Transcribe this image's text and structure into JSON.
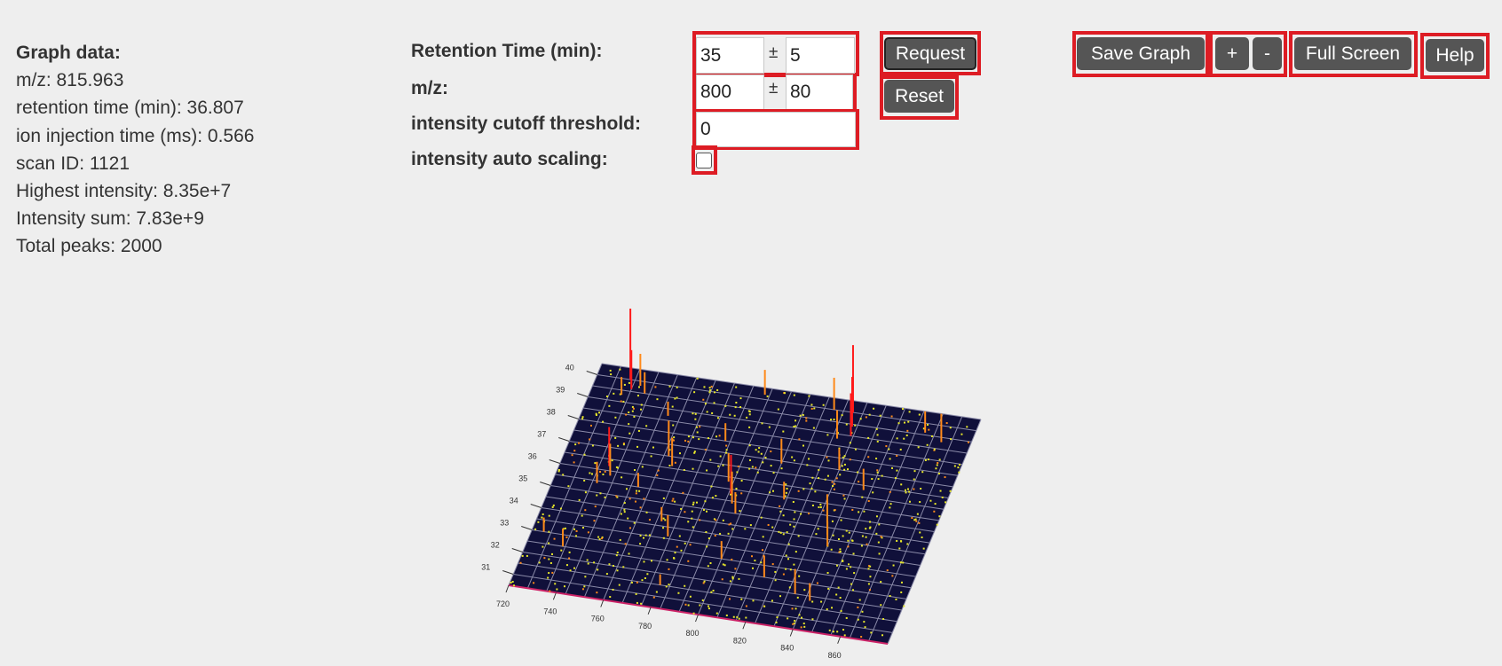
{
  "graph_info": {
    "heading": "Graph data:",
    "lines": [
      "m/z: 815.963",
      "retention time (min): 36.807",
      "ion injection time (ms): 0.566",
      "scan ID: 1121",
      "Highest intensity: 8.35e+7",
      "Intensity sum: 7.83e+9",
      "Total peaks: 2000"
    ]
  },
  "controls": {
    "rt_label": "Retention Time (min):",
    "rt_value": "35",
    "rt_tolerance": "5",
    "mz_label": "m/z:",
    "mz_value": "800",
    "mz_tolerance": "80",
    "plusminus": "±",
    "cutoff_label": "intensity cutoff threshold:",
    "cutoff_value": "0",
    "autoscale_label": "intensity auto scaling:",
    "autoscale_checked": false,
    "request_label": "Request",
    "reset_label": "Reset"
  },
  "toolbar": {
    "save_label": "Save Graph",
    "zoom_in_label": "+",
    "zoom_out_label": "-",
    "fullscreen_label": "Full Screen",
    "help_label": "Help"
  },
  "colors": {
    "highlight": "#dd1c24",
    "button": "#555555",
    "plot_floor": "#10103a",
    "grid": "#8a8aa8",
    "peak_high": "#ff1a1a",
    "peak_mid": "#ff8a1a",
    "point_low": "#e8e82a",
    "baseline": "#cc2266"
  },
  "chart_data": {
    "type": "scatter",
    "title": "",
    "xlabel": "",
    "ylabel": "",
    "x_ticks": [
      "720",
      "740",
      "760",
      "780",
      "800",
      "820",
      "840",
      "860"
    ],
    "y_ticks": [
      "31",
      "32",
      "33",
      "34",
      "35",
      "36",
      "37",
      "38",
      "39",
      "40"
    ],
    "xlim": [
      720,
      880
    ],
    "ylim": [
      30.5,
      40.5
    ],
    "peaks": [
      {
        "mz": 734,
        "rt": 40.0,
        "intensity": 1.0
      },
      {
        "mz": 736,
        "rt": 39.6,
        "intensity": 0.55
      },
      {
        "mz": 739,
        "rt": 39.8,
        "intensity": 0.45
      },
      {
        "mz": 742,
        "rt": 39.5,
        "intensity": 0.3
      },
      {
        "mz": 733,
        "rt": 39.3,
        "intensity": 0.25
      },
      {
        "mz": 828,
        "rt": 40.0,
        "intensity": 0.95
      },
      {
        "mz": 830,
        "rt": 39.4,
        "intensity": 0.7
      },
      {
        "mz": 831,
        "rt": 39.0,
        "intensity": 0.6
      },
      {
        "mz": 826,
        "rt": 38.8,
        "intensity": 0.4
      },
      {
        "mz": 820,
        "rt": 40.0,
        "intensity": 0.45
      },
      {
        "mz": 790,
        "rt": 40.2,
        "intensity": 0.35
      },
      {
        "mz": 860,
        "rt": 39.6,
        "intensity": 0.3
      },
      {
        "mz": 868,
        "rt": 39.3,
        "intensity": 0.4
      },
      {
        "mz": 755,
        "rt": 38.7,
        "intensity": 0.2
      },
      {
        "mz": 740,
        "rt": 36.2,
        "intensity": 0.55
      },
      {
        "mz": 742,
        "rt": 35.8,
        "intensity": 0.45
      },
      {
        "mz": 738,
        "rt": 35.4,
        "intensity": 0.3
      },
      {
        "mz": 762,
        "rt": 37.0,
        "intensity": 0.5
      },
      {
        "mz": 765,
        "rt": 36.6,
        "intensity": 0.4
      },
      {
        "mz": 790,
        "rt": 36.3,
        "intensity": 0.4
      },
      {
        "mz": 793,
        "rt": 35.8,
        "intensity": 0.55
      },
      {
        "mz": 795,
        "rt": 35.4,
        "intensity": 0.45
      },
      {
        "mz": 798,
        "rt": 35.0,
        "intensity": 0.3
      },
      {
        "mz": 808,
        "rt": 37.4,
        "intensity": 0.35
      },
      {
        "mz": 836,
        "rt": 35.2,
        "intensity": 0.4
      },
      {
        "mz": 838,
        "rt": 34.7,
        "intensity": 0.5
      },
      {
        "mz": 840,
        "rt": 34.2,
        "intensity": 0.35
      },
      {
        "mz": 845,
        "rt": 36.8,
        "intensity": 0.3
      },
      {
        "mz": 832,
        "rt": 37.5,
        "intensity": 0.3
      },
      {
        "mz": 782,
        "rt": 38.0,
        "intensity": 0.25
      },
      {
        "mz": 725,
        "rt": 33.0,
        "intensity": 0.2
      },
      {
        "mz": 735,
        "rt": 32.5,
        "intensity": 0.25
      },
      {
        "mz": 775,
        "rt": 33.6,
        "intensity": 0.3
      },
      {
        "mz": 770,
        "rt": 34.2,
        "intensity": 0.2
      },
      {
        "mz": 800,
        "rt": 33.0,
        "intensity": 0.25
      },
      {
        "mz": 820,
        "rt": 32.5,
        "intensity": 0.3
      },
      {
        "mz": 835,
        "rt": 32.0,
        "intensity": 0.35
      },
      {
        "mz": 842,
        "rt": 31.8,
        "intensity": 0.25
      },
      {
        "mz": 780,
        "rt": 31.5,
        "intensity": 0.15
      },
      {
        "mz": 755,
        "rt": 35.5,
        "intensity": 0.2
      },
      {
        "mz": 815,
        "rt": 35.9,
        "intensity": 0.25
      }
    ]
  }
}
